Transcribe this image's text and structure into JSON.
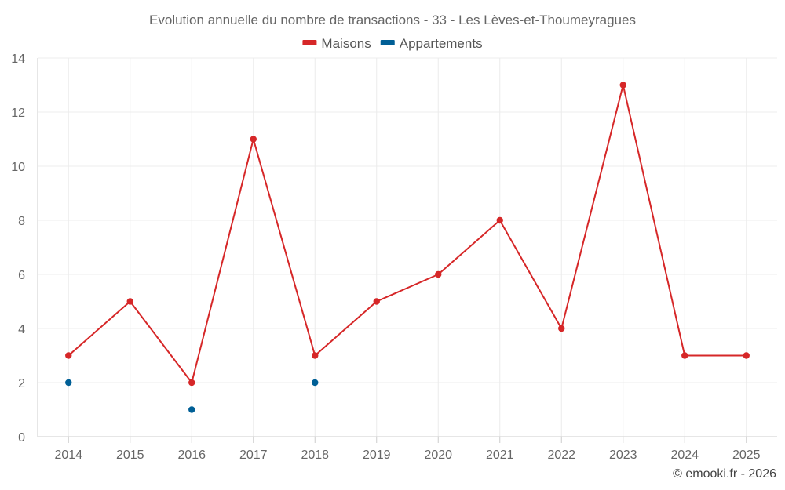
{
  "chart_data": {
    "type": "line",
    "title": "Evolution annuelle du nombre de transactions - 33 - Les Lèves-et-Thoumeyragues",
    "categories": [
      "2014",
      "2015",
      "2016",
      "2017",
      "2018",
      "2019",
      "2020",
      "2021",
      "2022",
      "2023",
      "2024",
      "2025"
    ],
    "ylim": [
      0,
      14
    ],
    "yticks": [
      0,
      2,
      4,
      6,
      8,
      10,
      12,
      14
    ],
    "grid": true,
    "legend_position": "top-center",
    "series": [
      {
        "name": "Maisons",
        "color": "#d62728",
        "values": [
          3,
          5,
          2,
          11,
          3,
          5,
          6,
          8,
          4,
          13,
          3,
          3
        ]
      },
      {
        "name": "Appartements",
        "color": "#005f96",
        "values": [
          2,
          null,
          1,
          null,
          2,
          null,
          null,
          null,
          null,
          null,
          null,
          null
        ]
      }
    ],
    "credit": "© emooki.fr - 2026"
  }
}
